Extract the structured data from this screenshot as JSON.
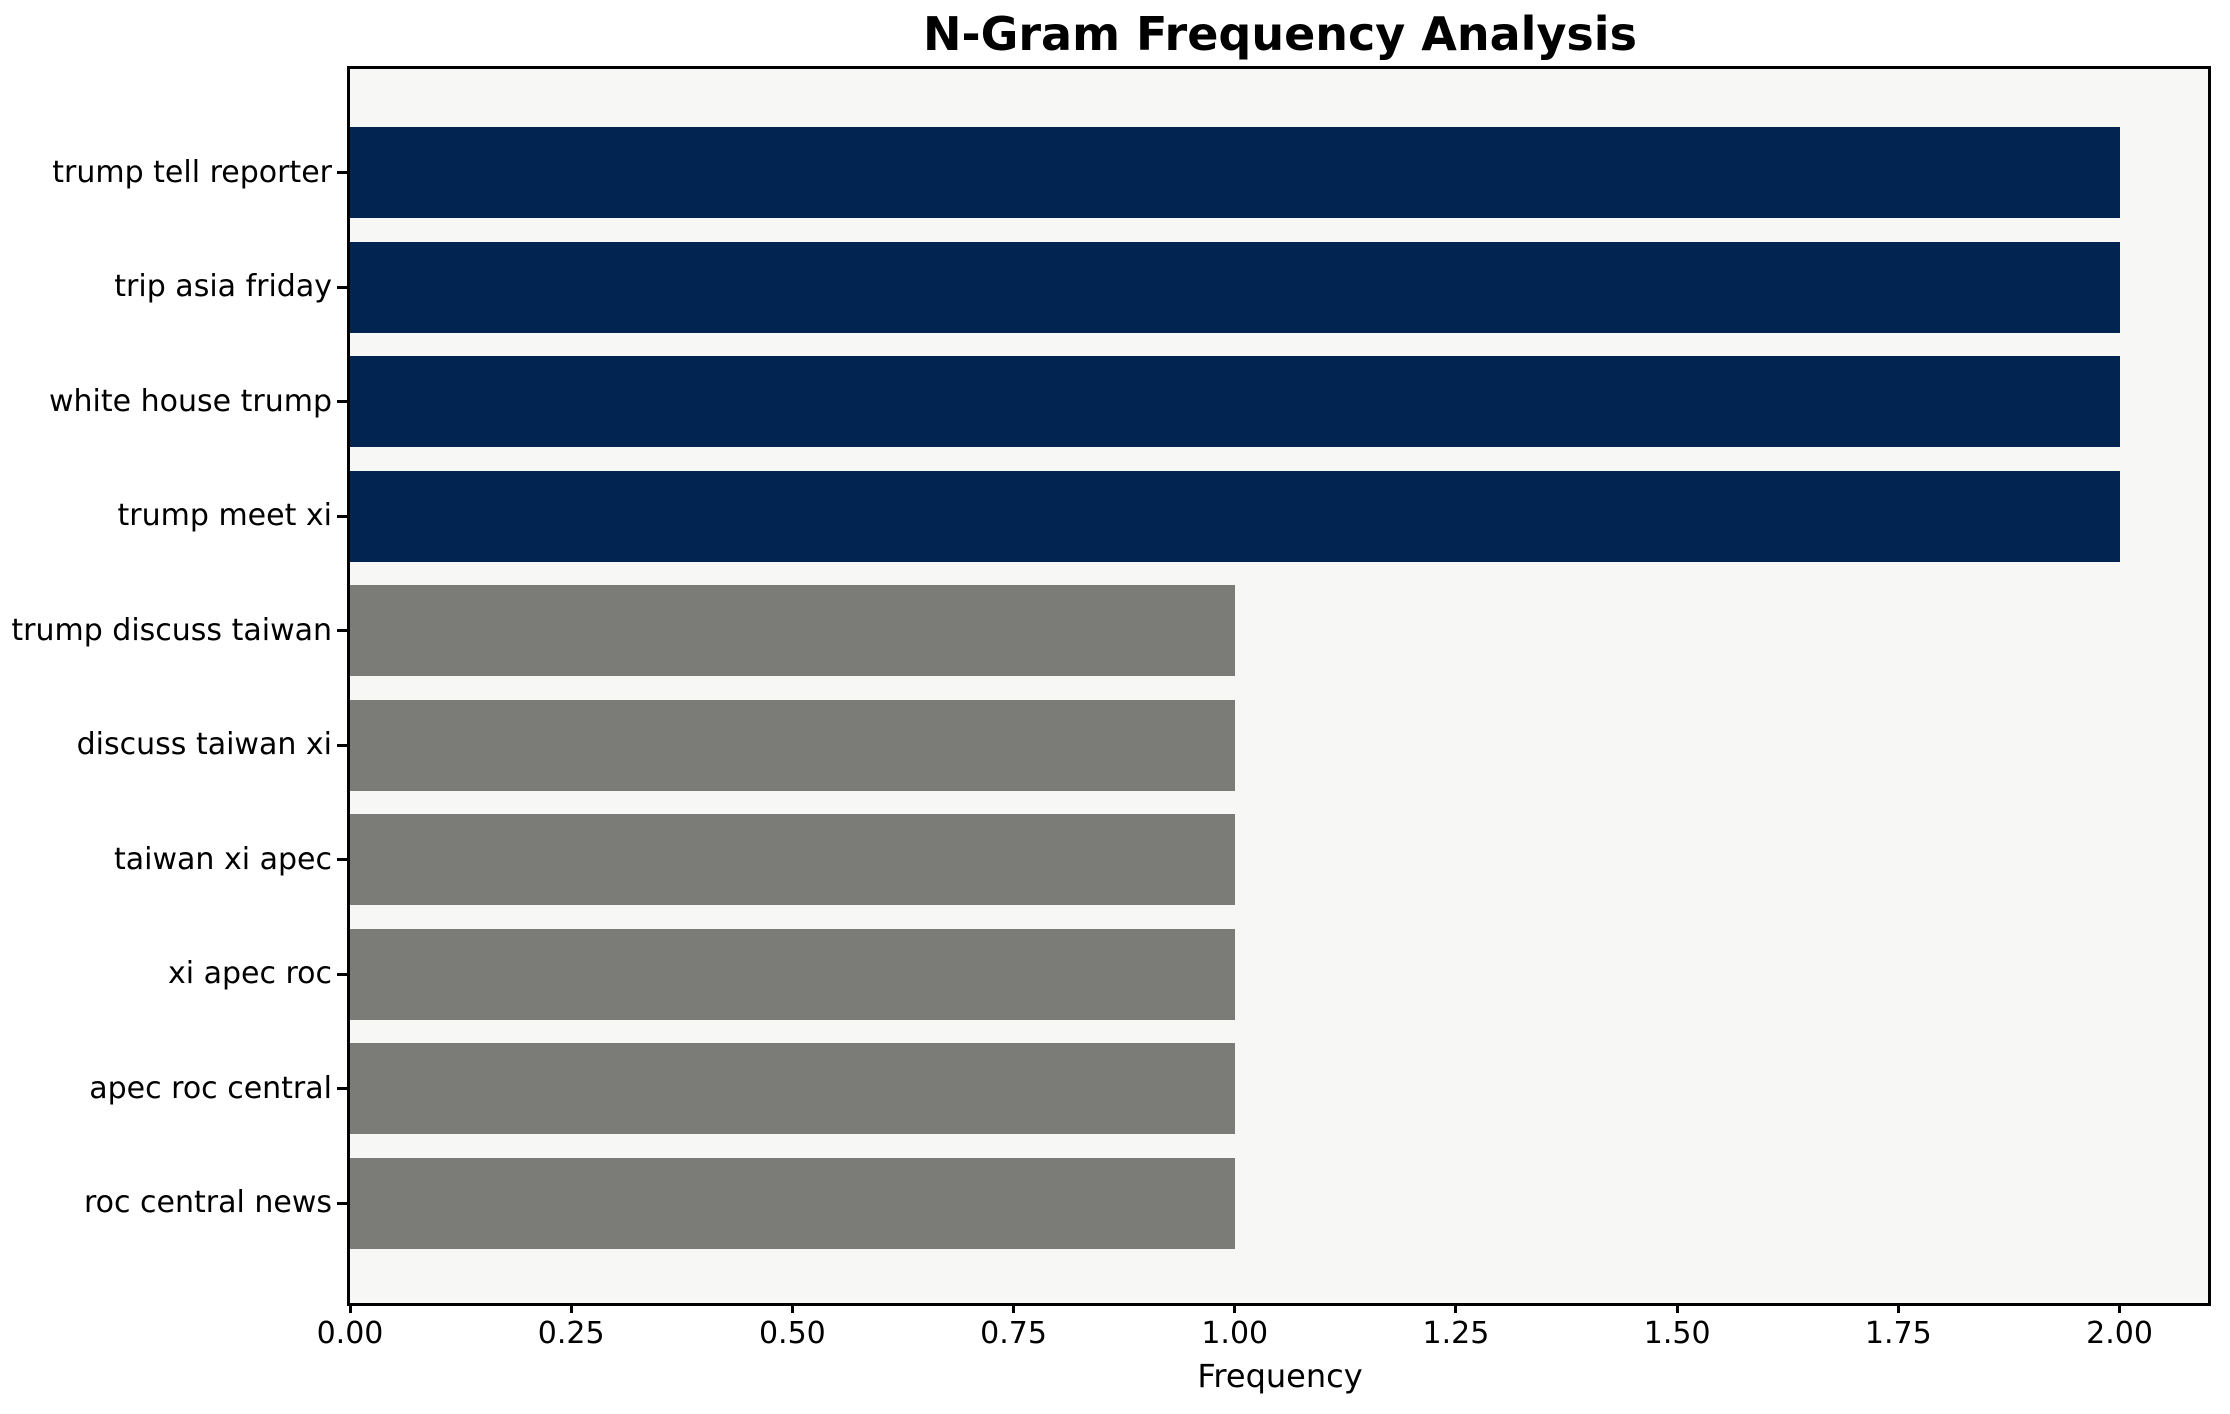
{
  "chart_data": {
    "type": "bar",
    "orientation": "horizontal",
    "title": "N-Gram Frequency Analysis",
    "xlabel": "Frequency",
    "ylabel": "",
    "categories": [
      "trump tell reporter",
      "trip asia friday",
      "white house trump",
      "trump meet xi",
      "trump discuss taiwan",
      "discuss taiwan xi",
      "taiwan xi apec",
      "xi apec roc",
      "apec roc central",
      "roc central news"
    ],
    "values": [
      2,
      2,
      2,
      2,
      1,
      1,
      1,
      1,
      1,
      1
    ],
    "bar_colors": [
      "#012450",
      "#012450",
      "#012450",
      "#012450",
      "#7b7b78",
      "#7b7b78",
      "#7b7b78",
      "#7b7b78",
      "#7b7b78",
      "#7b7b78"
    ],
    "xlim": [
      0,
      2.1
    ],
    "xticks": [
      {
        "value": 0.0,
        "label": "0.00"
      },
      {
        "value": 0.25,
        "label": "0.25"
      },
      {
        "value": 0.5,
        "label": "0.50"
      },
      {
        "value": 0.75,
        "label": "0.75"
      },
      {
        "value": 1.0,
        "label": "1.00"
      },
      {
        "value": 1.25,
        "label": "1.25"
      },
      {
        "value": 1.5,
        "label": "1.50"
      },
      {
        "value": 1.75,
        "label": "1.75"
      },
      {
        "value": 2.0,
        "label": "2.00"
      }
    ],
    "grid": false,
    "legend": null,
    "colors": {
      "bar_primary": "#012450",
      "bar_secondary": "#7b7b78",
      "plot_background": "#f7f7f5",
      "figure_background": "#ffffff",
      "axis": "#000000",
      "text": "#000000"
    }
  }
}
